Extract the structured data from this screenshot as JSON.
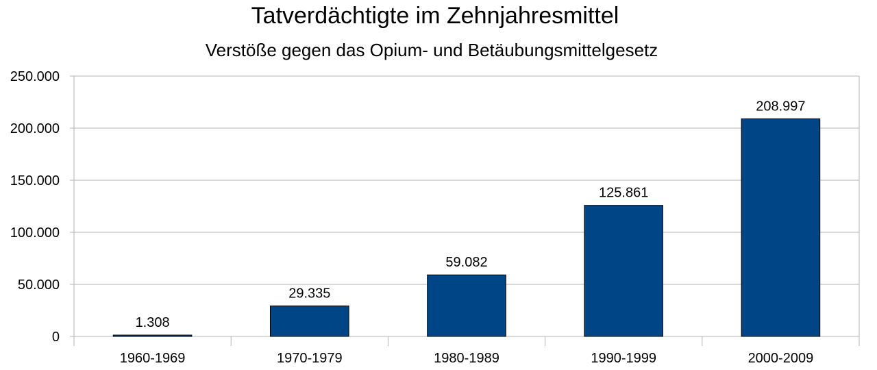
{
  "chart_data": {
    "type": "bar",
    "title": "Tatverdächtigte im Zehnjahresmittel",
    "subtitle": "Verstöße gegen das Opium- und Betäubungsmittelgesetz",
    "categories": [
      "1960-1969",
      "1970-1979",
      "1980-1989",
      "1990-1999",
      "2000-2009"
    ],
    "values": [
      1308,
      29335,
      59082,
      125861,
      208997
    ],
    "value_labels": [
      "1.308",
      "29.335",
      "59.082",
      "125.861",
      "208.997"
    ],
    "yticks": [
      0,
      50000,
      100000,
      150000,
      200000,
      250000
    ],
    "ytick_labels": [
      "0",
      "50.000",
      "100.000",
      "150.000",
      "200.000",
      "250.000"
    ],
    "ylim": [
      0,
      250000
    ],
    "grid": true,
    "legend": "none",
    "colors": {
      "bar_fill": "#004586",
      "bar_stroke": "#000000",
      "grid": "#b3b3b3",
      "axis": "#b3b3b3"
    }
  }
}
